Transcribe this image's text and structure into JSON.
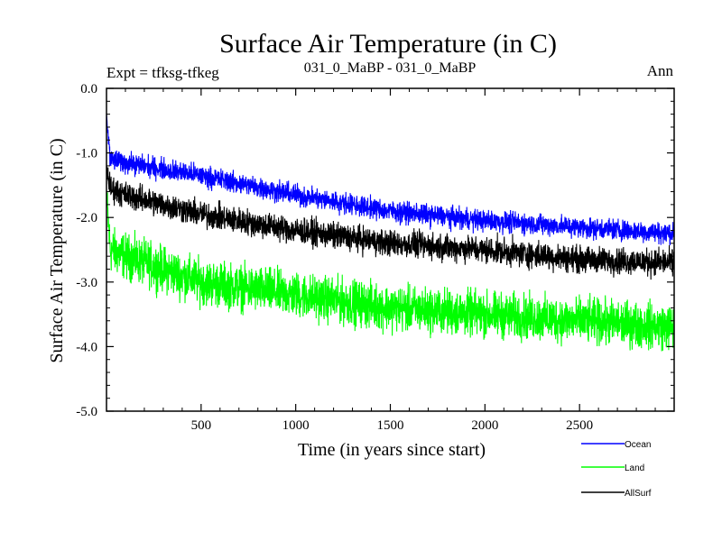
{
  "chart_data": {
    "type": "line",
    "title": "Surface Air Temperature (in C)",
    "left_label": "Expt = tfksg-tfkeg",
    "center_label": "031_0_MaBP - 031_0_MaBP",
    "right_label": "Ann",
    "xlabel": "Time (in years since start)",
    "ylabel": "Surface Air Temperature (in C)",
    "xlim": [
      0,
      3000
    ],
    "ylim": [
      -5.0,
      0.0
    ],
    "xticks": [
      500,
      1000,
      1500,
      2000,
      2500
    ],
    "xtick_labels": [
      "500",
      "1000",
      "1500",
      "2000",
      "2500"
    ],
    "yticks": [
      0.0,
      -1.0,
      -2.0,
      -3.0,
      -4.0,
      -5.0
    ],
    "ytick_labels": [
      "0.0",
      "-1.0",
      "-2.0",
      "-3.0",
      "-4.0",
      "-5.0"
    ],
    "series": [
      {
        "name": "Ocean",
        "color": "#0000ff",
        "noise": 0.08,
        "points": [
          [
            0,
            -0.4
          ],
          [
            20,
            -1.1
          ],
          [
            100,
            -1.15
          ],
          [
            500,
            -1.35
          ],
          [
            1000,
            -1.65
          ],
          [
            1500,
            -1.9
          ],
          [
            2000,
            -2.05
          ],
          [
            2500,
            -2.15
          ],
          [
            3000,
            -2.25
          ]
        ]
      },
      {
        "name": "Land",
        "color": "#00ff00",
        "noise": 0.17,
        "points": [
          [
            0,
            -1.7
          ],
          [
            20,
            -2.5
          ],
          [
            100,
            -2.6
          ],
          [
            500,
            -3.0
          ],
          [
            1000,
            -3.2
          ],
          [
            1500,
            -3.4
          ],
          [
            2000,
            -3.5
          ],
          [
            2500,
            -3.6
          ],
          [
            3000,
            -3.7
          ]
        ]
      },
      {
        "name": "AllSurf",
        "color": "#000000",
        "noise": 0.1,
        "points": [
          [
            0,
            -1.2
          ],
          [
            20,
            -1.55
          ],
          [
            100,
            -1.65
          ],
          [
            500,
            -1.95
          ],
          [
            1000,
            -2.2
          ],
          [
            1500,
            -2.4
          ],
          [
            2000,
            -2.5
          ],
          [
            2500,
            -2.65
          ],
          [
            3000,
            -2.7
          ]
        ]
      }
    ]
  }
}
